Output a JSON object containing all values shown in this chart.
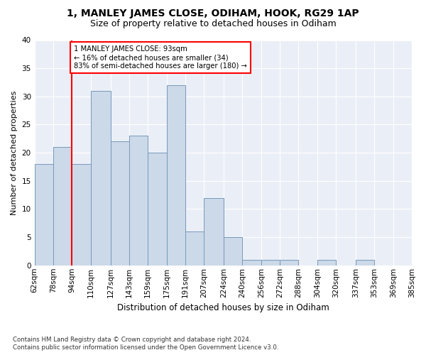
{
  "title": "1, MANLEY JAMES CLOSE, ODIHAM, HOOK, RG29 1AP",
  "subtitle": "Size of property relative to detached houses in Odiham",
  "xlabel": "Distribution of detached houses by size in Odiham",
  "ylabel": "Number of detached properties",
  "bar_values": [
    18,
    21,
    18,
    31,
    22,
    23,
    20,
    32,
    6,
    12,
    5,
    1,
    1,
    1,
    0,
    1,
    0,
    1,
    0,
    0
  ],
  "bin_edges": [
    62,
    78,
    94,
    110,
    127,
    143,
    159,
    175,
    191,
    207,
    224,
    240,
    256,
    272,
    288,
    304,
    320,
    337,
    353,
    369,
    385
  ],
  "bin_labels": [
    "62sqm",
    "78sqm",
    "94sqm",
    "110sqm",
    "127sqm",
    "143sqm",
    "159sqm",
    "175sqm",
    "191sqm",
    "207sqm",
    "224sqm",
    "240sqm",
    "256sqm",
    "272sqm",
    "288sqm",
    "304sqm",
    "320sqm",
    "337sqm",
    "353sqm",
    "369sqm",
    "385sqm"
  ],
  "bar_color": "#ccd9e8",
  "bar_edge_color": "#7799bb",
  "vline_x": 94,
  "vline_color": "red",
  "annotation_text": "1 MANLEY JAMES CLOSE: 93sqm\n← 16% of detached houses are smaller (34)\n83% of semi-detached houses are larger (180) →",
  "annotation_box_facecolor": "white",
  "annotation_box_edgecolor": "red",
  "ylim": [
    0,
    40
  ],
  "yticks": [
    0,
    5,
    10,
    15,
    20,
    25,
    30,
    35,
    40
  ],
  "bg_color": "#eaeff7",
  "grid_color": "#ffffff",
  "title_fontsize": 10,
  "subtitle_fontsize": 9,
  "ylabel_fontsize": 8,
  "xlabel_fontsize": 8.5,
  "tick_fontsize": 7.5,
  "footer_line1": "Contains HM Land Registry data © Crown copyright and database right 2024.",
  "footer_line2": "Contains public sector information licensed under the Open Government Licence v3.0."
}
